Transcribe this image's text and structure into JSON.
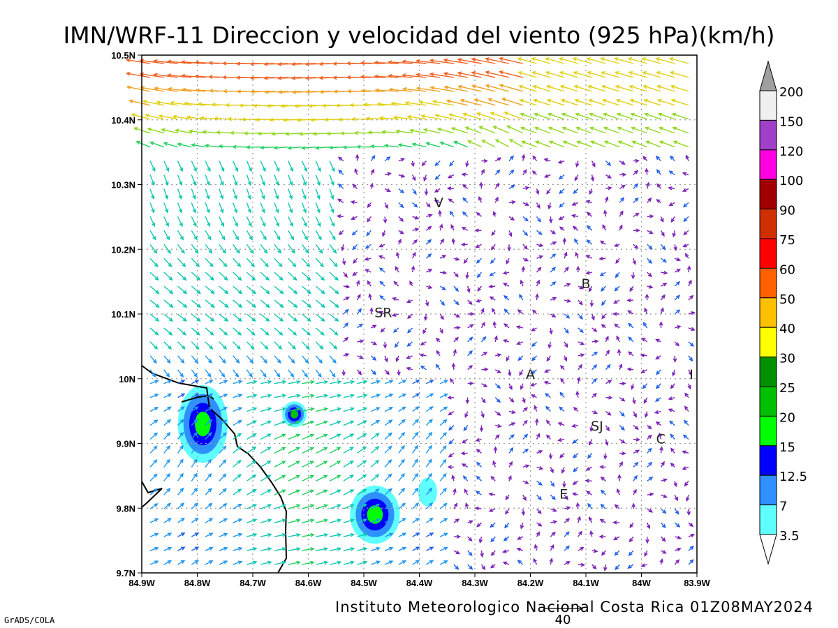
{
  "title": "IMN/WRF-11 Direccion y velocidad del viento (925 hPa)(km/h)",
  "footer": "Instituto Meteorologico Nacional Costa Rica 01Z08MAY2024",
  "credit": "GrADS/COLA",
  "reference_vector_label": "40",
  "map": {
    "lon_range": [
      -84.9,
      -83.9
    ],
    "lat_range": [
      9.7,
      10.5
    ],
    "lon_tick_labels": [
      "84.9W",
      "84.8W",
      "84.7W",
      "84.6W",
      "84.5W",
      "84.4W",
      "84.3W",
      "84.2W",
      "84.1W",
      "84W",
      "83.9W"
    ],
    "lat_tick_labels": [
      "9.7N",
      "9.8N",
      "9.9N",
      "10N",
      "10.1N",
      "10.2N",
      "10.3N",
      "10.4N",
      "10.5N"
    ],
    "grid": true,
    "place_labels": [
      {
        "label": "V",
        "lon": -84.365,
        "lat": 10.265
      },
      {
        "label": "SR",
        "lon": -84.465,
        "lat": 10.095
      },
      {
        "label": "B",
        "lon": -84.1,
        "lat": 10.14
      },
      {
        "label": "A",
        "lon": -84.2,
        "lat": 10.0
      },
      {
        "label": "I",
        "lon": -83.91,
        "lat": 10.0
      },
      {
        "label": "SJ",
        "lon": -84.08,
        "lat": 9.92
      },
      {
        "label": "C",
        "lon": -83.965,
        "lat": 9.9
      },
      {
        "label": "E",
        "lon": -84.14,
        "lat": 9.815
      }
    ]
  },
  "colorbar": {
    "labels": [
      "200",
      "150",
      "120",
      "100",
      "90",
      "75",
      "60",
      "50",
      "40",
      "30",
      "25",
      "20",
      "15",
      "12.5",
      "7",
      "3.5"
    ],
    "colors": [
      "#f0f0f0",
      "#a040c8",
      "#ff00e0",
      "#a00000",
      "#d03000",
      "#ff0000",
      "#ff6000",
      "#ffc000",
      "#ffff00",
      "#009000",
      "#00c000",
      "#00ff00",
      "#0000ff",
      "#3090ff",
      "#60ffff"
    ],
    "top_arrow_color": "#a0a0a0"
  },
  "shaded_regions": [
    {
      "lon": -84.79,
      "lat": 9.93,
      "rlon": 0.045,
      "rlat": 0.06,
      "levels": [
        "#60ffff",
        "#3090ff",
        "#0000ff",
        "#00ff00"
      ]
    },
    {
      "lon": -84.625,
      "lat": 9.945,
      "rlon": 0.022,
      "rlat": 0.02,
      "levels": [
        "#60ffff",
        "#3090ff",
        "#0000ff",
        "#00c000"
      ]
    },
    {
      "lon": -84.48,
      "lat": 9.79,
      "rlon": 0.045,
      "rlat": 0.045,
      "levels": [
        "#60ffff",
        "#3090ff",
        "#0000ff",
        "#00ff00"
      ]
    },
    {
      "lon": -84.385,
      "lat": 9.825,
      "rlon": 0.017,
      "rlat": 0.022,
      "levels": [
        "#60ffff"
      ]
    }
  ]
}
